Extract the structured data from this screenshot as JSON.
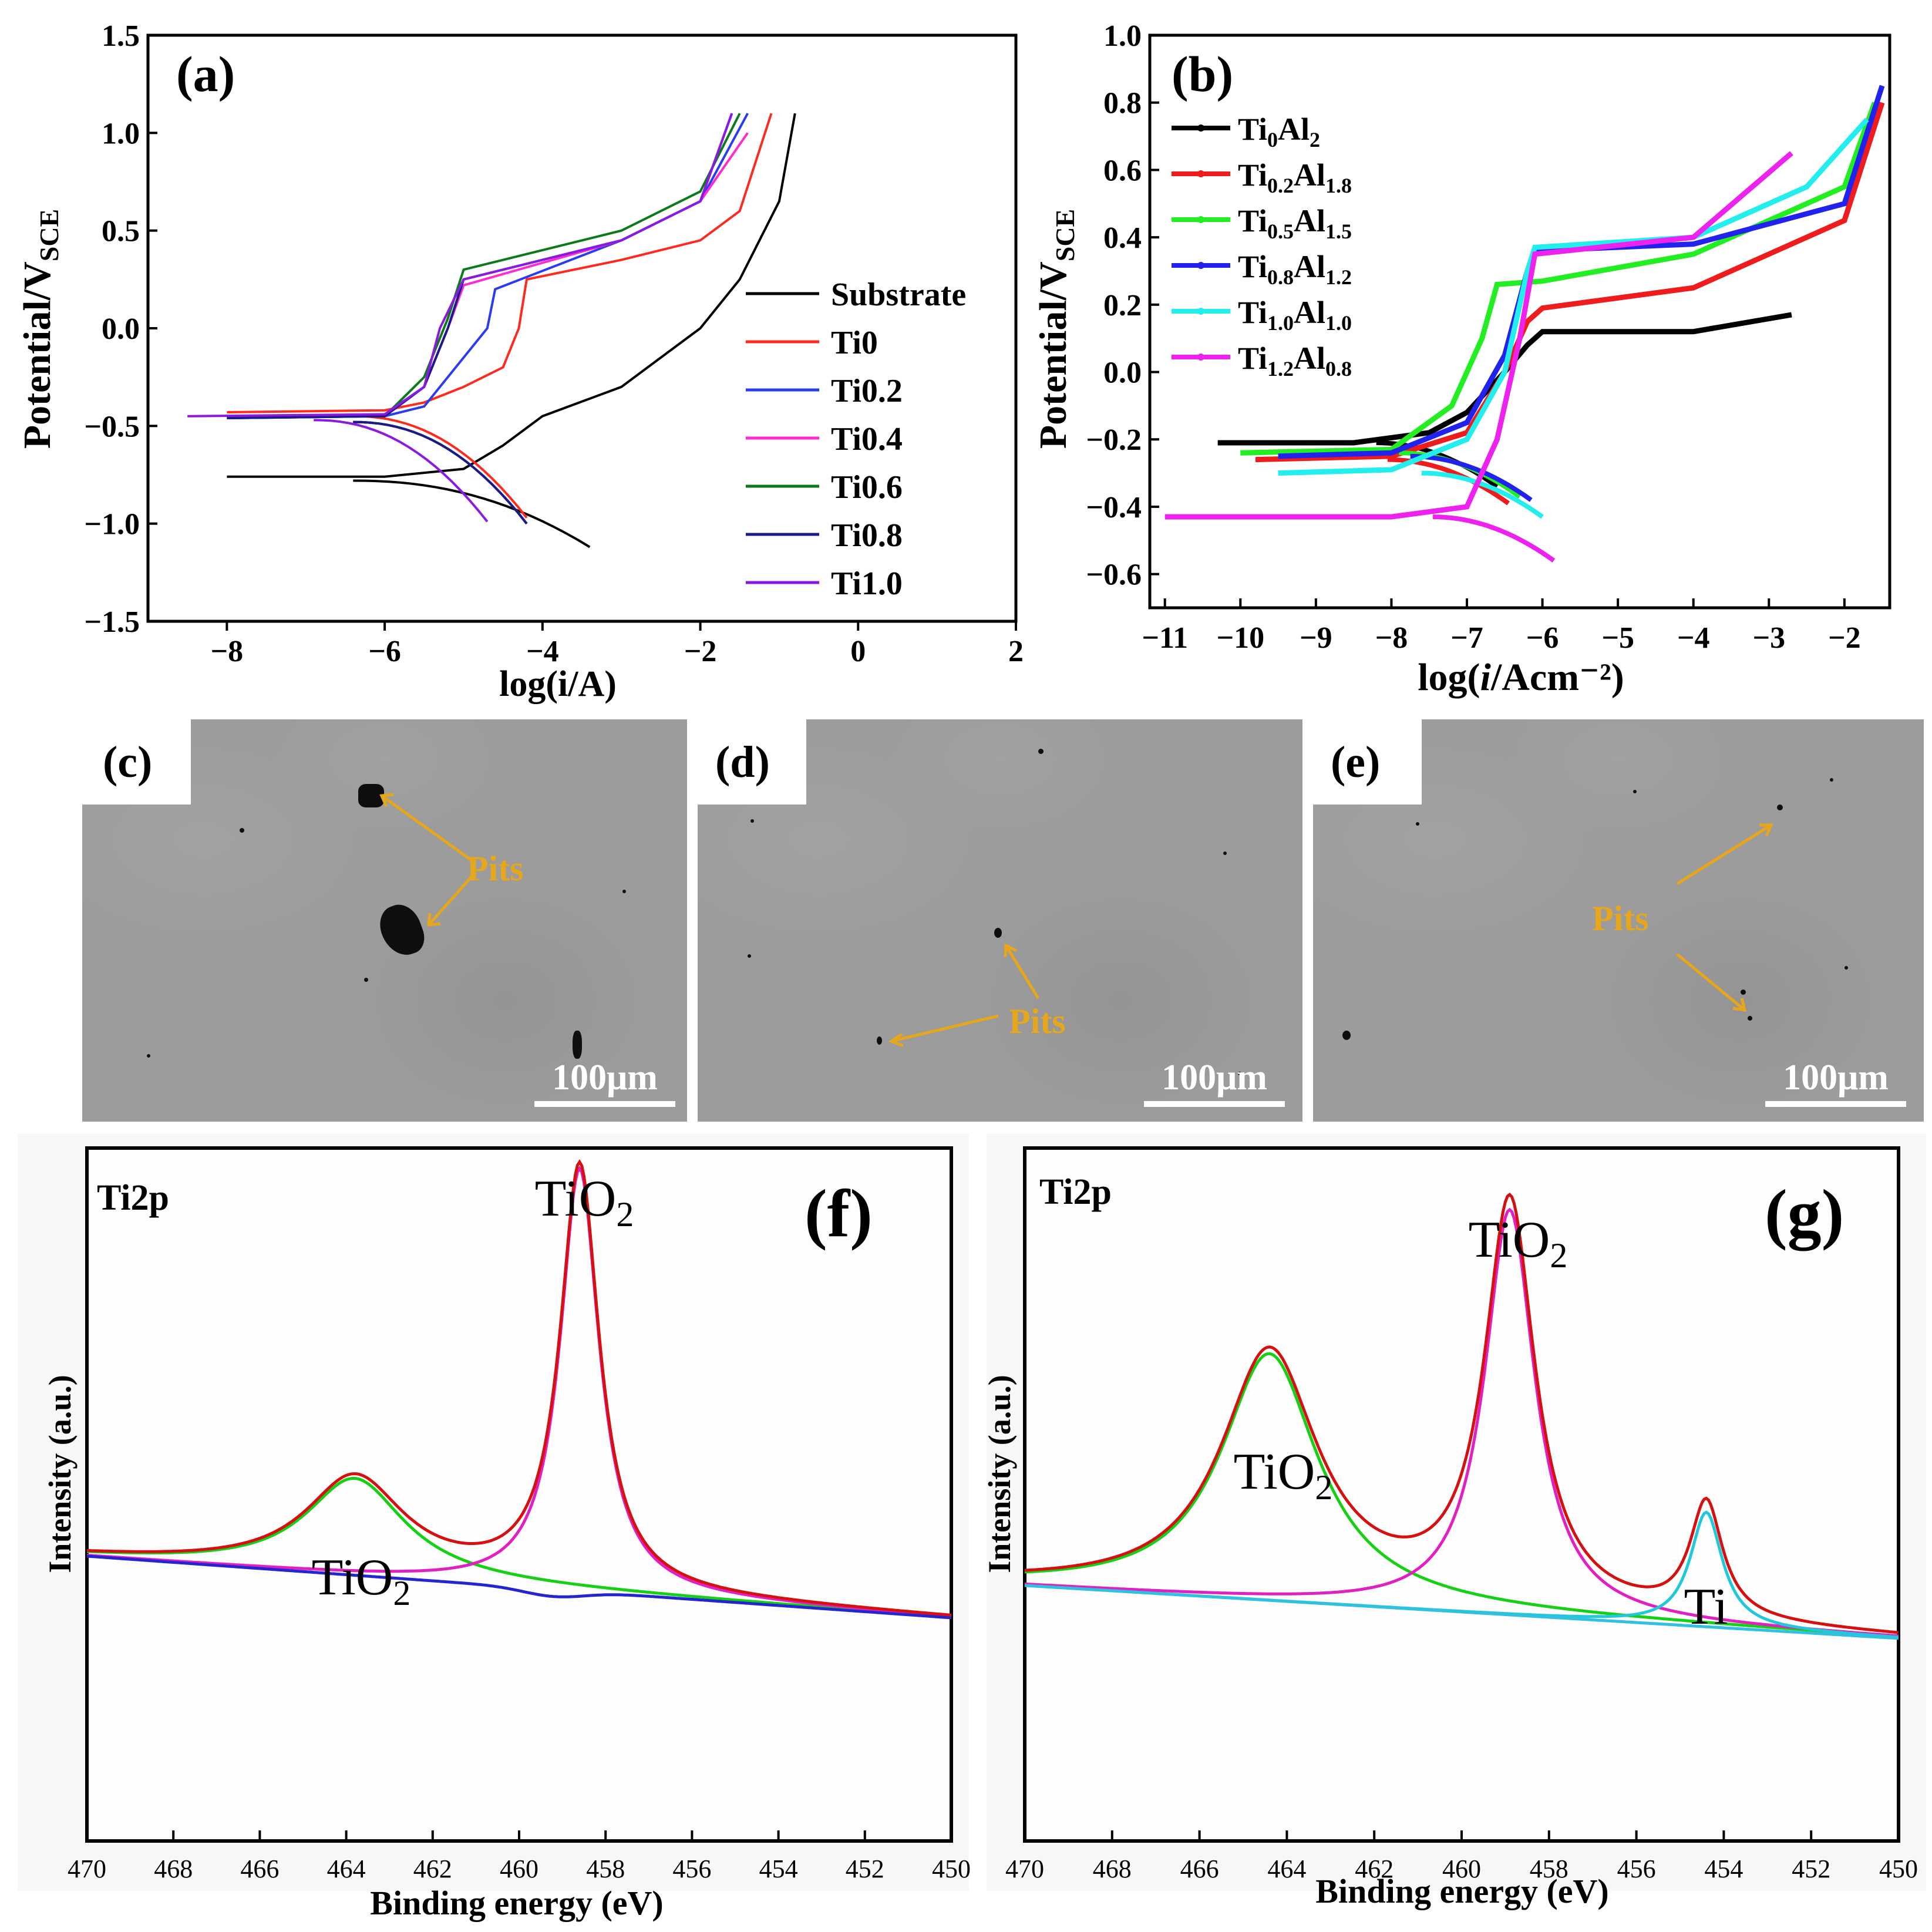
{
  "panel_a": {
    "label": "(a)",
    "ylabel_main": "Potential/V",
    "ylabel_sub": "SCE",
    "xlabel": "log(i/A)",
    "yticks": [
      "1.5",
      "1.0",
      "0.5",
      "0.0",
      "−0.5",
      "−1.0",
      "−1.5"
    ],
    "xticks": [
      "−8",
      "−6",
      "−4",
      "−2",
      "0",
      "2"
    ],
    "legend": [
      {
        "name": "Substrate",
        "color": "#000000"
      },
      {
        "name": "Ti0",
        "color": "#ff2a1f"
      },
      {
        "name": "Ti0.2",
        "color": "#2a3cf0"
      },
      {
        "name": "Ti0.4",
        "color": "#ff2ad0"
      },
      {
        "name": "Ti0.6",
        "color": "#0a7a1a"
      },
      {
        "name": "Ti0.8",
        "color": "#1a1a8a"
      },
      {
        "name": "Ti1.0",
        "color": "#8a1ae0"
      }
    ]
  },
  "panel_b": {
    "label": "(b)",
    "ylabel_main": "Potential/V",
    "ylabel_sub": "SCE",
    "xlabel_pre": "log(",
    "xlabel_i": "i",
    "xlabel_post": "/Acm⁻²)",
    "yticks": [
      "1.0",
      "0.8",
      "0.6",
      "0.4",
      "0.2",
      "0.0",
      "−0.2",
      "−0.4",
      "−0.6"
    ],
    "xticks": [
      "−11",
      "−10",
      "−9",
      "−8",
      "−7",
      "−6",
      "−5",
      "−4",
      "−3",
      "−2"
    ],
    "legend": [
      {
        "ti": "Ti",
        "ti_sub": "0",
        "al": "Al",
        "al_sub": "2",
        "color": "#000000"
      },
      {
        "ti": "Ti",
        "ti_sub": "0.2",
        "al": "Al",
        "al_sub": "1.8",
        "color": "#ee1c1c"
      },
      {
        "ti": "Ti",
        "ti_sub": "0.5",
        "al": "Al",
        "al_sub": "1.5",
        "color": "#22ee22"
      },
      {
        "ti": "Ti",
        "ti_sub": "0.8",
        "al": "Al",
        "al_sub": "1.2",
        "color": "#2222ee"
      },
      {
        "ti": "Ti",
        "ti_sub": "1.0",
        "al": "Al",
        "al_sub": "1.0",
        "color": "#22eeee"
      },
      {
        "ti": "Ti",
        "ti_sub": "1.2",
        "al": "Al",
        "al_sub": "0.8",
        "color": "#ee22ee"
      }
    ]
  },
  "sem": [
    {
      "label": "(c)",
      "pits": "Pits",
      "scale": "100μm"
    },
    {
      "label": "(d)",
      "pits": "Pits",
      "scale": "100μm"
    },
    {
      "label": "(e)",
      "pits": "Pits",
      "scale": "100μm"
    }
  ],
  "panel_f": {
    "label": "(f)",
    "title": "Ti2p",
    "ylabel": "Intensity (a.u.)",
    "xlabel": "Binding energy (eV)",
    "xticks": [
      "470",
      "468",
      "466",
      "464",
      "462",
      "460",
      "458",
      "456",
      "454",
      "452",
      "450"
    ],
    "peak_small": "TiO",
    "peak_small_sub": "2",
    "peak_large": "TiO",
    "peak_large_sub": "2"
  },
  "panel_g": {
    "label": "(g)",
    "title": "Ti2p",
    "ylabel": "Intensity (a.u.)",
    "xlabel": "Binding energy (eV)",
    "xticks": [
      "470",
      "468",
      "466",
      "464",
      "462",
      "460",
      "458",
      "456",
      "454",
      "452",
      "450"
    ],
    "peak_small": "TiO",
    "peak_small_sub": "2",
    "peak_large": "TiO",
    "peak_large_sub": "2",
    "peak_metal": "Ti"
  },
  "chart_data": [
    {
      "type": "line",
      "title": "(a)",
      "xlabel": "log(i/A)",
      "ylabel": "Potential/V_SCE",
      "xlim": [
        -9,
        2
      ],
      "ylim": [
        -1.5,
        1.5
      ],
      "series": [
        {
          "name": "Substrate",
          "x": [
            -8.0,
            -6.0,
            -5.0,
            -4.5,
            -4.0,
            -3.0,
            -2.0,
            -1.5,
            -1.0,
            -0.8
          ],
          "y": [
            -0.76,
            -0.76,
            -0.72,
            -0.6,
            -0.45,
            -0.3,
            0.0,
            0.25,
            0.65,
            1.1
          ]
        },
        {
          "name": "Ti0",
          "x": [
            -8.0,
            -6.0,
            -5.5,
            -5.0,
            -4.5,
            -4.3,
            -4.2,
            -3.0,
            -2.0,
            -1.5,
            -1.1
          ],
          "y": [
            -0.43,
            -0.42,
            -0.38,
            -0.3,
            -0.2,
            0.0,
            0.25,
            0.35,
            0.45,
            0.6,
            1.1
          ]
        },
        {
          "name": "Ti0.2",
          "x": [
            -8.0,
            -6.0,
            -5.5,
            -5.0,
            -4.7,
            -4.6,
            -3.0,
            -2.0,
            -1.4
          ],
          "y": [
            -0.46,
            -0.45,
            -0.4,
            -0.15,
            0.0,
            0.2,
            0.45,
            0.65,
            1.1
          ]
        },
        {
          "name": "Ti0.4",
          "x": [
            -8.0,
            -6.0,
            -5.5,
            -5.2,
            -5.0,
            -3.0,
            -2.0,
            -1.4
          ],
          "y": [
            -0.46,
            -0.45,
            -0.3,
            0.0,
            0.22,
            0.45,
            0.65,
            1.0
          ]
        },
        {
          "name": "Ti0.6",
          "x": [
            -8.0,
            -6.0,
            -5.5,
            -5.2,
            -5.0,
            -3.0,
            -2.0,
            -1.5
          ],
          "y": [
            -0.46,
            -0.45,
            -0.25,
            0.05,
            0.3,
            0.5,
            0.7,
            1.1
          ]
        },
        {
          "name": "Ti0.8",
          "x": [
            -8.0,
            -6.0,
            -5.5,
            -5.2,
            -5.0,
            -3.0,
            -2.0,
            -1.6
          ],
          "y": [
            -0.46,
            -0.45,
            -0.3,
            0.0,
            0.25,
            0.45,
            0.65,
            1.1
          ]
        },
        {
          "name": "Ti1.0",
          "x": [
            -8.5,
            -6.0,
            -5.5,
            -5.3,
            -5.0,
            -3.0,
            -2.0,
            -1.6
          ],
          "y": [
            -0.45,
            -0.44,
            -0.3,
            0.0,
            0.25,
            0.45,
            0.65,
            1.1
          ]
        }
      ]
    },
    {
      "type": "line",
      "title": "(b)",
      "xlabel": "log(i/Acm⁻²)",
      "ylabel": "Potential/V_SCE",
      "xlim": [
        -11,
        -1.4
      ],
      "ylim": [
        -0.7,
        1.0
      ],
      "series": [
        {
          "name": "Ti0Al2",
          "x": [
            -10.3,
            -8.5,
            -7.5,
            -7.0,
            -6.5,
            -6.2,
            -6.0,
            -4.0,
            -2.7
          ],
          "y": [
            -0.21,
            -0.21,
            -0.18,
            -0.12,
            0.0,
            0.08,
            0.12,
            0.12,
            0.17
          ]
        },
        {
          "name": "Ti0.2Al1.8",
          "x": [
            -9.8,
            -8.0,
            -7.0,
            -6.5,
            -6.2,
            -6.0,
            -4.0,
            -2.0,
            -1.5
          ],
          "y": [
            -0.26,
            -0.25,
            -0.18,
            0.0,
            0.15,
            0.19,
            0.25,
            0.45,
            0.8
          ]
        },
        {
          "name": "Ti0.5Al1.5",
          "x": [
            -10.0,
            -8.0,
            -7.2,
            -6.8,
            -6.6,
            -6.0,
            -4.0,
            -2.0,
            -1.6
          ],
          "y": [
            -0.24,
            -0.23,
            -0.1,
            0.1,
            0.26,
            0.27,
            0.35,
            0.55,
            0.8
          ]
        },
        {
          "name": "Ti0.8Al1.2",
          "x": [
            -9.5,
            -8.0,
            -7.0,
            -6.5,
            -6.2,
            -6.1,
            -4.0,
            -2.0,
            -1.5
          ],
          "y": [
            -0.25,
            -0.24,
            -0.15,
            0.05,
            0.3,
            0.36,
            0.38,
            0.5,
            0.85
          ]
        },
        {
          "name": "Ti1.0Al1.0",
          "x": [
            -9.5,
            -8.0,
            -7.0,
            -6.5,
            -6.2,
            -6.1,
            -4.0,
            -2.5,
            -1.7
          ],
          "y": [
            -0.3,
            -0.29,
            -0.2,
            0.0,
            0.3,
            0.37,
            0.4,
            0.55,
            0.75
          ]
        },
        {
          "name": "Ti1.2Al0.8",
          "x": [
            -11.0,
            -8.0,
            -7.0,
            -6.6,
            -6.3,
            -6.1,
            -4.0,
            -2.7
          ],
          "y": [
            -0.43,
            -0.43,
            -0.4,
            -0.2,
            0.1,
            0.35,
            0.4,
            0.65
          ]
        }
      ]
    },
    {
      "type": "line",
      "title": "(f) Ti2p",
      "xlabel": "Binding energy (eV)",
      "ylabel": "Intensity (a.u.)",
      "xlim": [
        470,
        450
      ],
      "peaks": [
        {
          "label": "TiO2",
          "binding_energy_eV": 463.8,
          "relative_height": 0.35
        },
        {
          "label": "TiO2",
          "binding_energy_eV": 458.6,
          "relative_height": 1.0
        }
      ]
    },
    {
      "type": "line",
      "title": "(g) Ti2p",
      "xlabel": "Binding energy (eV)",
      "ylabel": "Intensity (a.u.)",
      "xlim": [
        470,
        450
      ],
      "peaks": [
        {
          "label": "TiO2",
          "binding_energy_eV": 464.4,
          "relative_height": 0.62
        },
        {
          "label": "TiO2",
          "binding_energy_eV": 458.9,
          "relative_height": 1.0
        },
        {
          "label": "Ti",
          "binding_energy_eV": 454.4,
          "relative_height": 0.28
        }
      ]
    }
  ]
}
